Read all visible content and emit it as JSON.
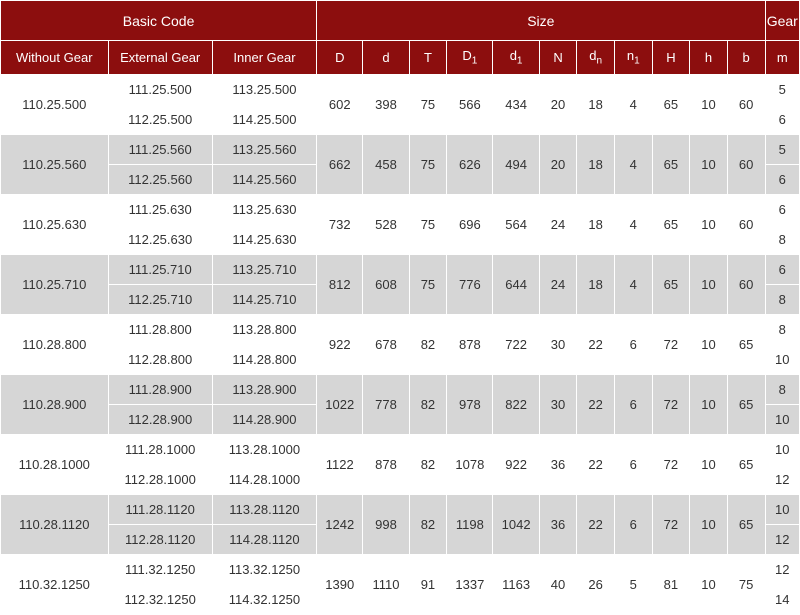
{
  "colors": {
    "header_bg": "#8c0e0e",
    "header_text": "#ffffff",
    "row_light": "#ffffff",
    "row_dark": "#d6d6d6",
    "cell_text": "#333333",
    "border": "#ffffff"
  },
  "headers": {
    "group_basic": "Basic Code",
    "group_size": "Size",
    "group_gear": "Gear",
    "without_gear": "Without Gear",
    "external_gear": "External Gear",
    "inner_gear": "Inner Gear",
    "D": "D",
    "d": "d",
    "T": "T",
    "D1": "D",
    "d1": "d",
    "N": "N",
    "dn": "d",
    "n1": "n",
    "H": "H",
    "h": "h",
    "b": "b",
    "m": "m",
    "sub1": "1",
    "subn": "n"
  },
  "rows": [
    {
      "without": "110.25.500",
      "ext": [
        "111.25.500",
        "112.25.500"
      ],
      "inn": [
        "113.25.500",
        "114.25.500"
      ],
      "D": "602",
      "d": "398",
      "T": "75",
      "D1": "566",
      "d1": "434",
      "N": "20",
      "dn": "18",
      "n1": "4",
      "H": "65",
      "h": "10",
      "b": "60",
      "m": [
        "5",
        "6"
      ]
    },
    {
      "without": "110.25.560",
      "ext": [
        "111.25.560",
        "112.25.560"
      ],
      "inn": [
        "113.25.560",
        "114.25.560"
      ],
      "D": "662",
      "d": "458",
      "T": "75",
      "D1": "626",
      "d1": "494",
      "N": "20",
      "dn": "18",
      "n1": "4",
      "H": "65",
      "h": "10",
      "b": "60",
      "m": [
        "5",
        "6"
      ]
    },
    {
      "without": "110.25.630",
      "ext": [
        "111.25.630",
        "112.25.630"
      ],
      "inn": [
        "113.25.630",
        "114.25.630"
      ],
      "D": "732",
      "d": "528",
      "T": "75",
      "D1": "696",
      "d1": "564",
      "N": "24",
      "dn": "18",
      "n1": "4",
      "H": "65",
      "h": "10",
      "b": "60",
      "m": [
        "6",
        "8"
      ]
    },
    {
      "without": "110.25.710",
      "ext": [
        "111.25.710",
        "112.25.710"
      ],
      "inn": [
        "113.25.710",
        "114.25.710"
      ],
      "D": "812",
      "d": "608",
      "T": "75",
      "D1": "776",
      "d1": "644",
      "N": "24",
      "dn": "18",
      "n1": "4",
      "H": "65",
      "h": "10",
      "b": "60",
      "m": [
        "6",
        "8"
      ]
    },
    {
      "without": "110.28.800",
      "ext": [
        "111.28.800",
        "112.28.800"
      ],
      "inn": [
        "113.28.800",
        "114.28.800"
      ],
      "D": "922",
      "d": "678",
      "T": "82",
      "D1": "878",
      "d1": "722",
      "N": "30",
      "dn": "22",
      "n1": "6",
      "H": "72",
      "h": "10",
      "b": "65",
      "m": [
        "8",
        "10"
      ]
    },
    {
      "without": "110.28.900",
      "ext": [
        "111.28.900",
        "112.28.900"
      ],
      "inn": [
        "113.28.900",
        "114.28.900"
      ],
      "D": "1022",
      "d": "778",
      "T": "82",
      "D1": "978",
      "d1": "822",
      "N": "30",
      "dn": "22",
      "n1": "6",
      "H": "72",
      "h": "10",
      "b": "65",
      "m": [
        "8",
        "10"
      ]
    },
    {
      "without": "110.28.1000",
      "ext": [
        "111.28.1000",
        "112.28.1000"
      ],
      "inn": [
        "113.28.1000",
        "114.28.1000"
      ],
      "D": "1122",
      "d": "878",
      "T": "82",
      "D1": "1078",
      "d1": "922",
      "N": "36",
      "dn": "22",
      "n1": "6",
      "H": "72",
      "h": "10",
      "b": "65",
      "m": [
        "10",
        "12"
      ]
    },
    {
      "without": "110.28.1120",
      "ext": [
        "111.28.1120",
        "112.28.1120"
      ],
      "inn": [
        "113.28.1120",
        "114.28.1120"
      ],
      "D": "1242",
      "d": "998",
      "T": "82",
      "D1": "1198",
      "d1": "1042",
      "N": "36",
      "dn": "22",
      "n1": "6",
      "H": "72",
      "h": "10",
      "b": "65",
      "m": [
        "10",
        "12"
      ]
    },
    {
      "without": "110.32.1250",
      "ext": [
        "111.32.1250",
        "112.32.1250"
      ],
      "inn": [
        "113.32.1250",
        "114.32.1250"
      ],
      "D": "1390",
      "d": "1110",
      "T": "91",
      "D1": "1337",
      "d1": "1163",
      "N": "40",
      "dn": "26",
      "n1": "5",
      "H": "81",
      "h": "10",
      "b": "75",
      "m": [
        "12",
        "14"
      ]
    }
  ]
}
